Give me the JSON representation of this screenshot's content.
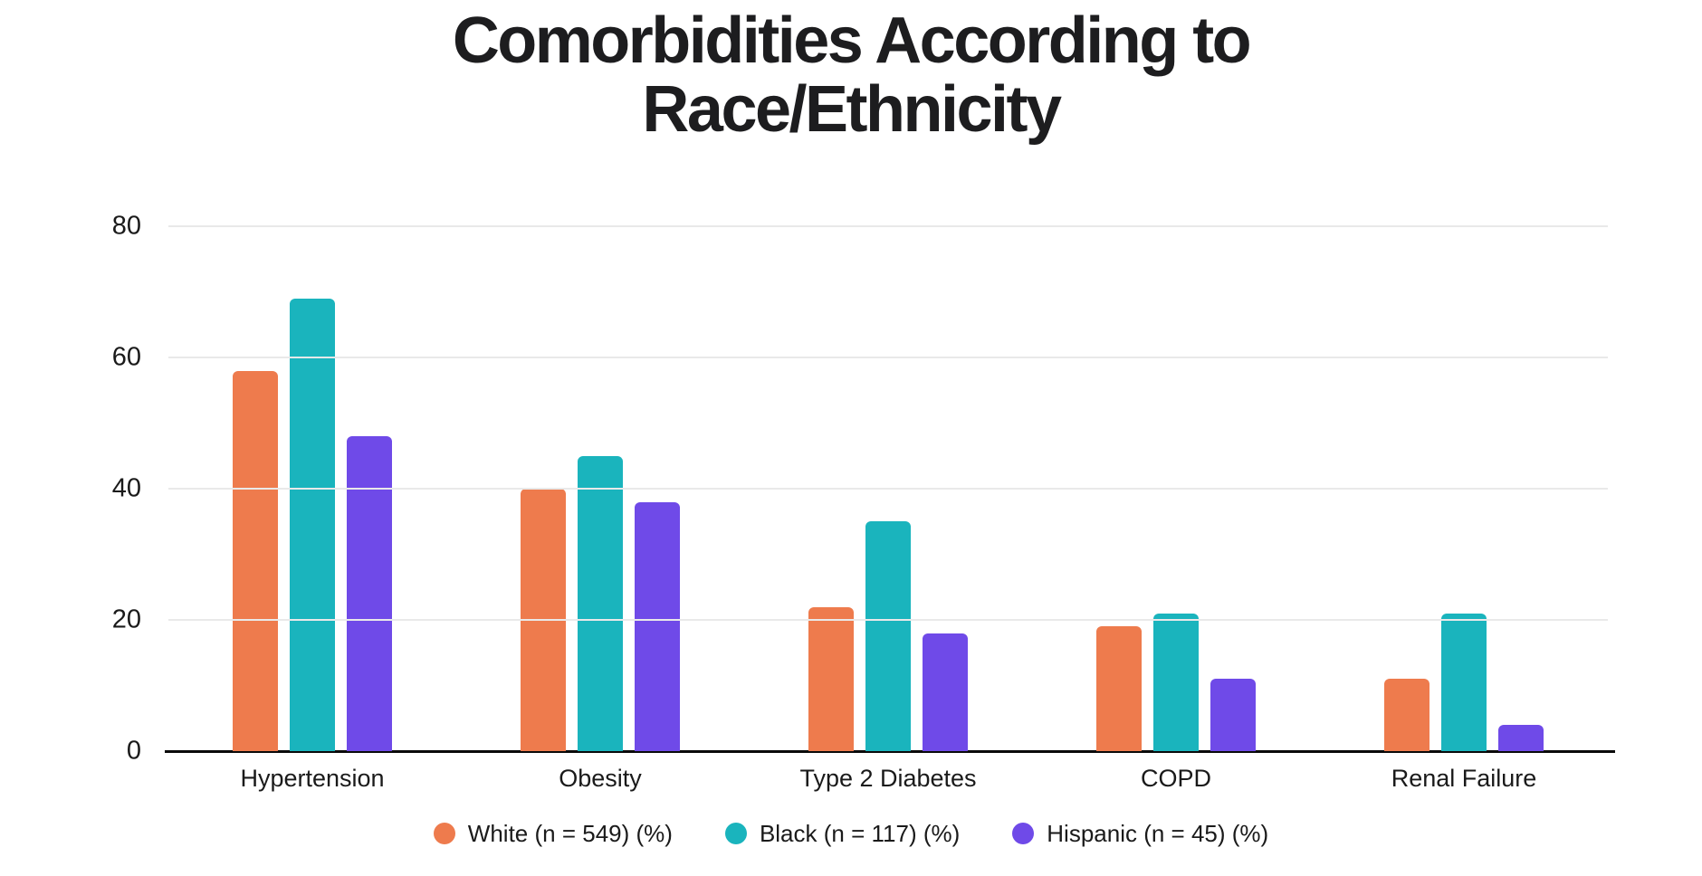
{
  "chart_data": {
    "type": "bar",
    "title": "Comorbidities According to Race/Ethnicity",
    "categories": [
      "Hypertension",
      "Obesity",
      "Type 2 Diabetes",
      "COPD",
      "Renal Failure"
    ],
    "series": [
      {
        "name": "White (n = 549) (%)",
        "color": "#EE7B4D",
        "values": [
          58,
          40,
          22,
          19,
          11
        ]
      },
      {
        "name": "Black (n = 117) (%)",
        "color": "#1AB4BD",
        "values": [
          69,
          45,
          35,
          21,
          21
        ]
      },
      {
        "name": "Hispanic (n = 45) (%)",
        "color": "#6F4AE8",
        "values": [
          48,
          38,
          18,
          11,
          4
        ]
      }
    ],
    "ylim": [
      0,
      80
    ],
    "yticks": [
      0,
      20,
      40,
      60,
      80
    ],
    "grid": "horizontal",
    "legend_position": "bottom-center",
    "background_color": "#ffffff",
    "axis_color": "#0a0a0a",
    "gridline_color": "#e9e9e9",
    "text_color": "#1a1a1a",
    "title_color": "#1d1d1f"
  }
}
